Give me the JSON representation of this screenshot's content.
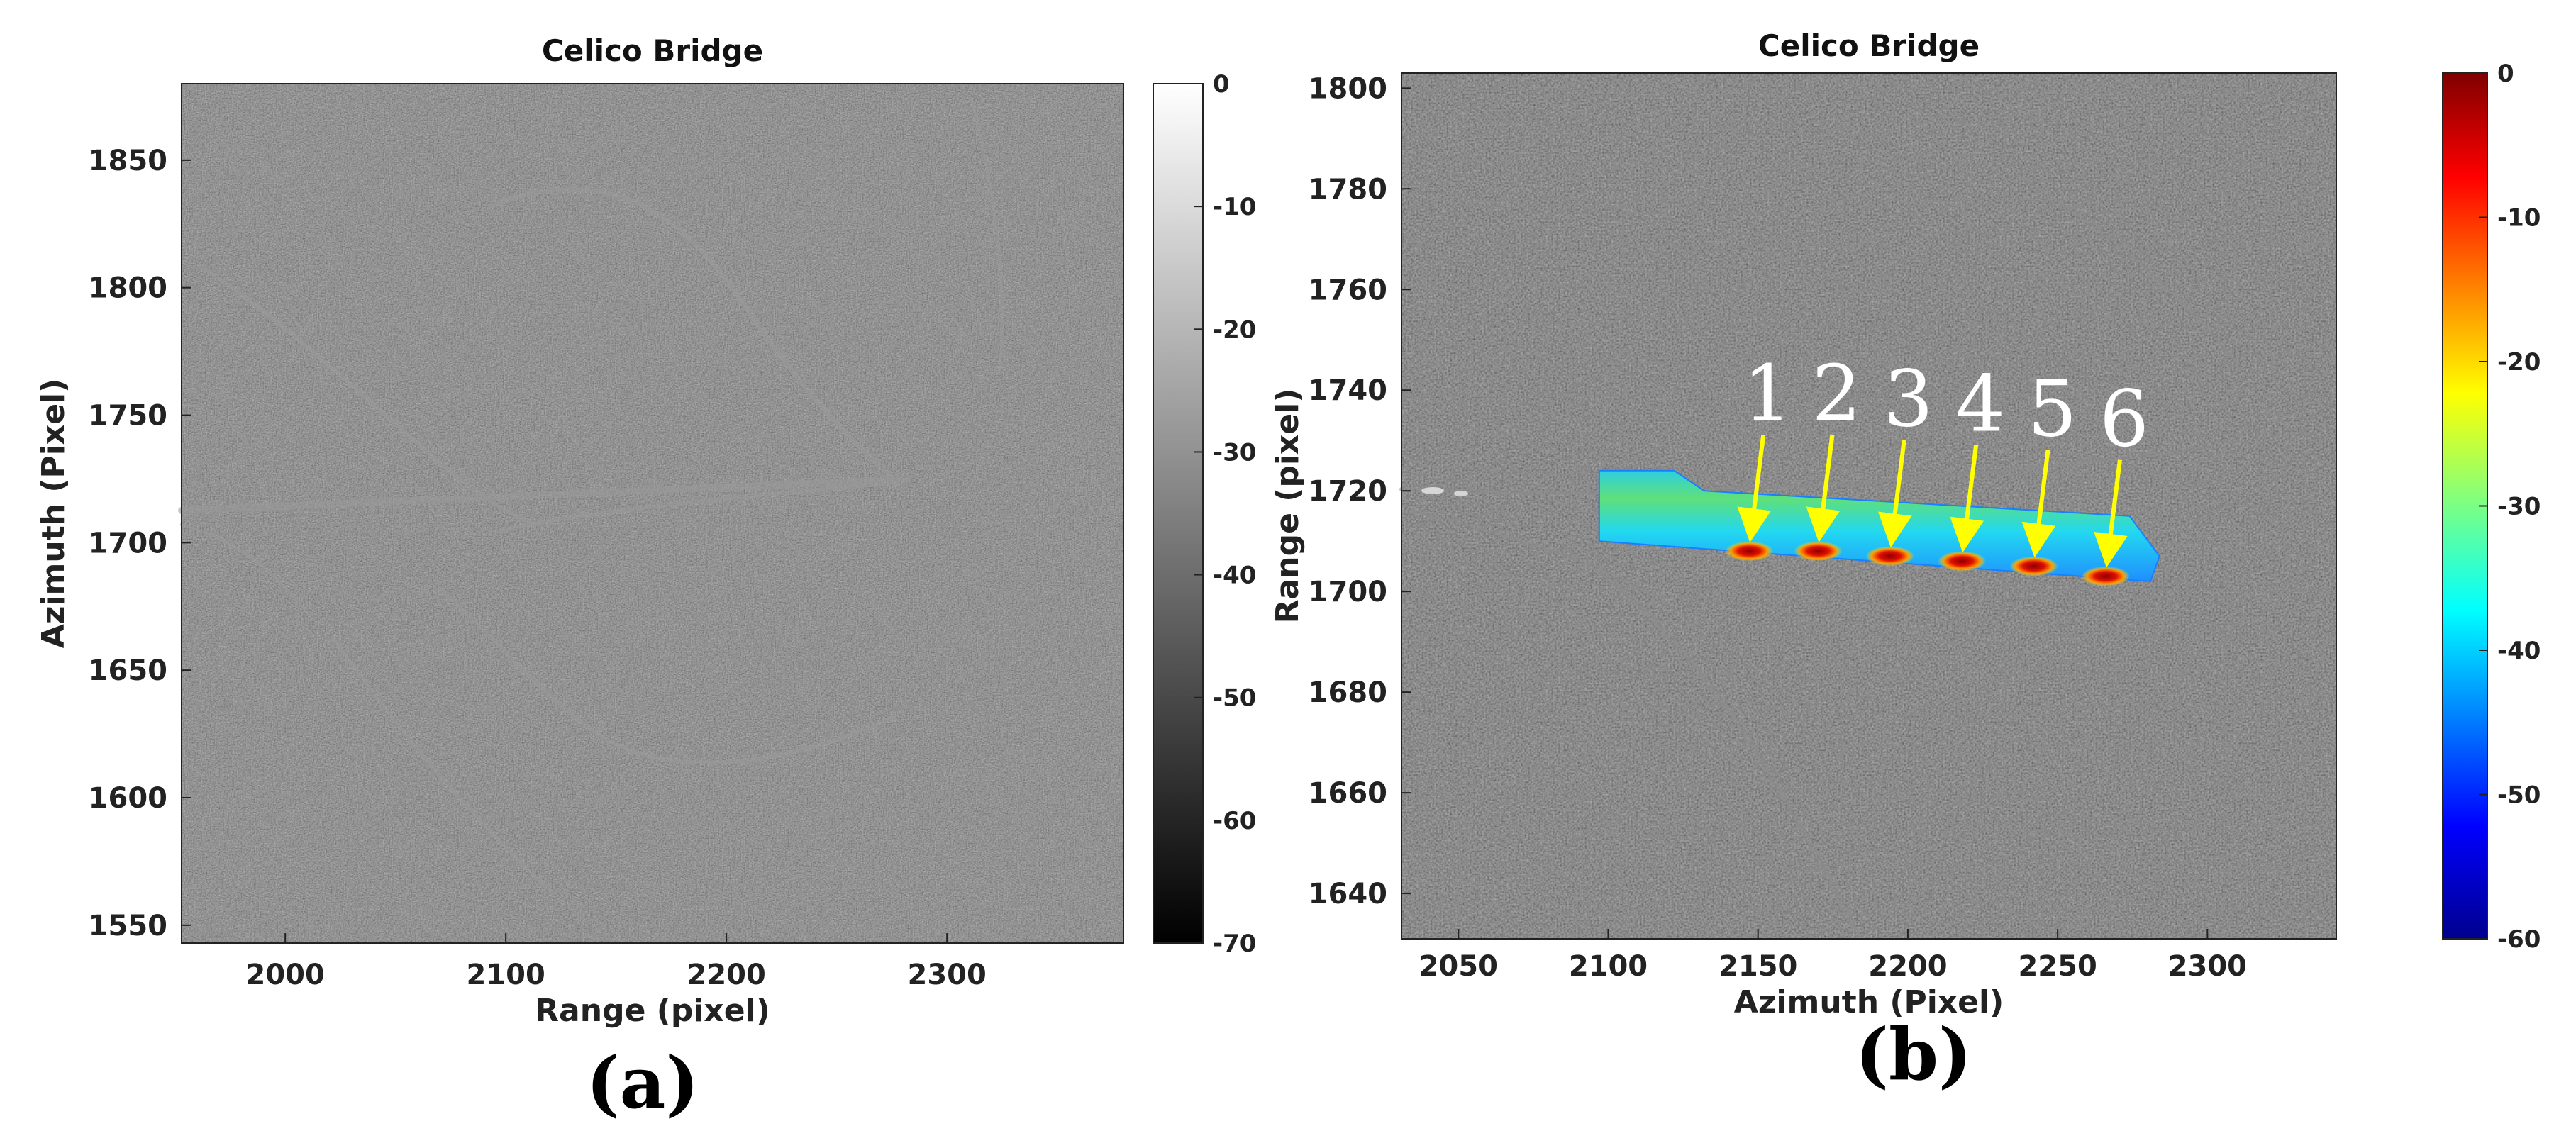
{
  "chart_data": [
    {
      "type": "heatmap",
      "panel_label": "(a)",
      "title": "Celico Bridge",
      "xlabel": "Range (pixel)",
      "ylabel": "Azimuth (Pixel)",
      "xlim": [
        1953,
        2380
      ],
      "ylim": [
        1880,
        1543
      ],
      "x_ticks": [
        2000,
        2100,
        2200,
        2300
      ],
      "y_ticks": [
        1550,
        1600,
        1650,
        1700,
        1750,
        1800,
        1850
      ],
      "colormap": "gray",
      "colorbar": {
        "min": -70,
        "max": 0,
        "ticks": [
          0,
          -10,
          -20,
          -30,
          -40,
          -50,
          -60,
          -70
        ]
      }
    },
    {
      "type": "heatmap",
      "panel_label": "(b)",
      "title": "Celico Bridge",
      "xlabel": "Azimuth (Pixel)",
      "ylabel": "Range (pixel)",
      "xlim": [
        2031,
        2343
      ],
      "ylim": [
        1803,
        1631
      ],
      "x_ticks": [
        2050,
        2100,
        2150,
        2200,
        2250,
        2300
      ],
      "y_ticks": [
        1640,
        1660,
        1680,
        1700,
        1720,
        1740,
        1760,
        1780,
        1800
      ],
      "colormap": "jet",
      "colorbar": {
        "min": -60,
        "max": 0,
        "ticks": [
          0,
          -10,
          -20,
          -30,
          -40,
          -50,
          -60
        ]
      },
      "annotations": [
        {
          "label": "1",
          "x": 2148,
          "y": 1710
        },
        {
          "label": "2",
          "x": 2171,
          "y": 1710
        },
        {
          "label": "3",
          "x": 2195,
          "y": 1709
        },
        {
          "label": "4",
          "x": 2219,
          "y": 1708
        },
        {
          "label": "5",
          "x": 2243,
          "y": 1707
        },
        {
          "label": "6",
          "x": 2267,
          "y": 1705
        }
      ],
      "bridge_overlay": {
        "polygon": [
          [
            2097,
            1710
          ],
          [
            2281,
            1702
          ],
          [
            2284,
            1707
          ],
          [
            2274,
            1715
          ],
          [
            2132,
            1720
          ],
          [
            2122,
            1724
          ],
          [
            2097,
            1724
          ]
        ]
      }
    }
  ]
}
